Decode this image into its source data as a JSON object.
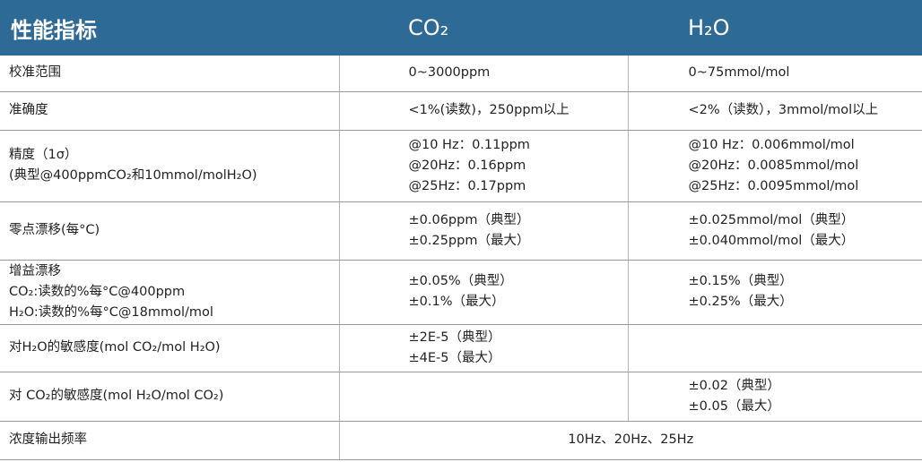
{
  "table": {
    "header": [
      "性能指标",
      "CO₂",
      "H₂O"
    ],
    "rows": [
      [
        [
          "校准范围"
        ],
        [
          "0~3000ppm"
        ],
        [
          "0~75mmol/mol"
        ]
      ],
      [
        [
          "准确度"
        ],
        [
          "<1%(读数)，250ppm以上"
        ],
        [
          "<2%（读数），3mmol/mol以上"
        ]
      ],
      [
        [
          "精度（1σ）",
          "(典型@400ppmCO₂和10mmol/molH₂O)"
        ],
        [
          "@10 Hz：0.11ppm",
          "@20Hz：0.16ppm",
          "@25Hz：0.17ppm"
        ],
        [
          "@10 Hz：0.006mmol/mol",
          "@20Hz：0.0085mmol/mol",
          "@25Hz：0.0095mmol/mol"
        ]
      ],
      [
        [
          "零点漂移(每°C)"
        ],
        [
          "±0.06ppm（典型）",
          "±0.25ppm（最大）"
        ],
        [
          "±0.025mmol/mol（典型）",
          "±0.040mmol/mol（最大）"
        ]
      ],
      [
        [
          "增益漂移",
          "CO₂:读数的%每°C@400ppm",
          "H₂O:读数的%每°C@18mmol/mol"
        ],
        [
          "±0.05%（典型）",
          "±0.1%（最大）"
        ],
        [
          "±0.15%（典型）",
          "±0.25%（最大）"
        ]
      ],
      [
        [
          "对H₂O的敏感度(mol CO₂/mol H₂O)"
        ],
        [
          "±2E-5（典型）",
          "±4E-5（最大）"
        ],
        []
      ],
      [
        [
          "对 CO₂的敏感度(mol H₂O/mol CO₂)"
        ],
        [],
        [
          "±0.02（典型）",
          "±0.05（最大）"
        ]
      ],
      [
        [
          "浓度输出频率"
        ],
        [
          "10Hz、20Hz、25Hz"
        ]
      ]
    ]
  }
}
